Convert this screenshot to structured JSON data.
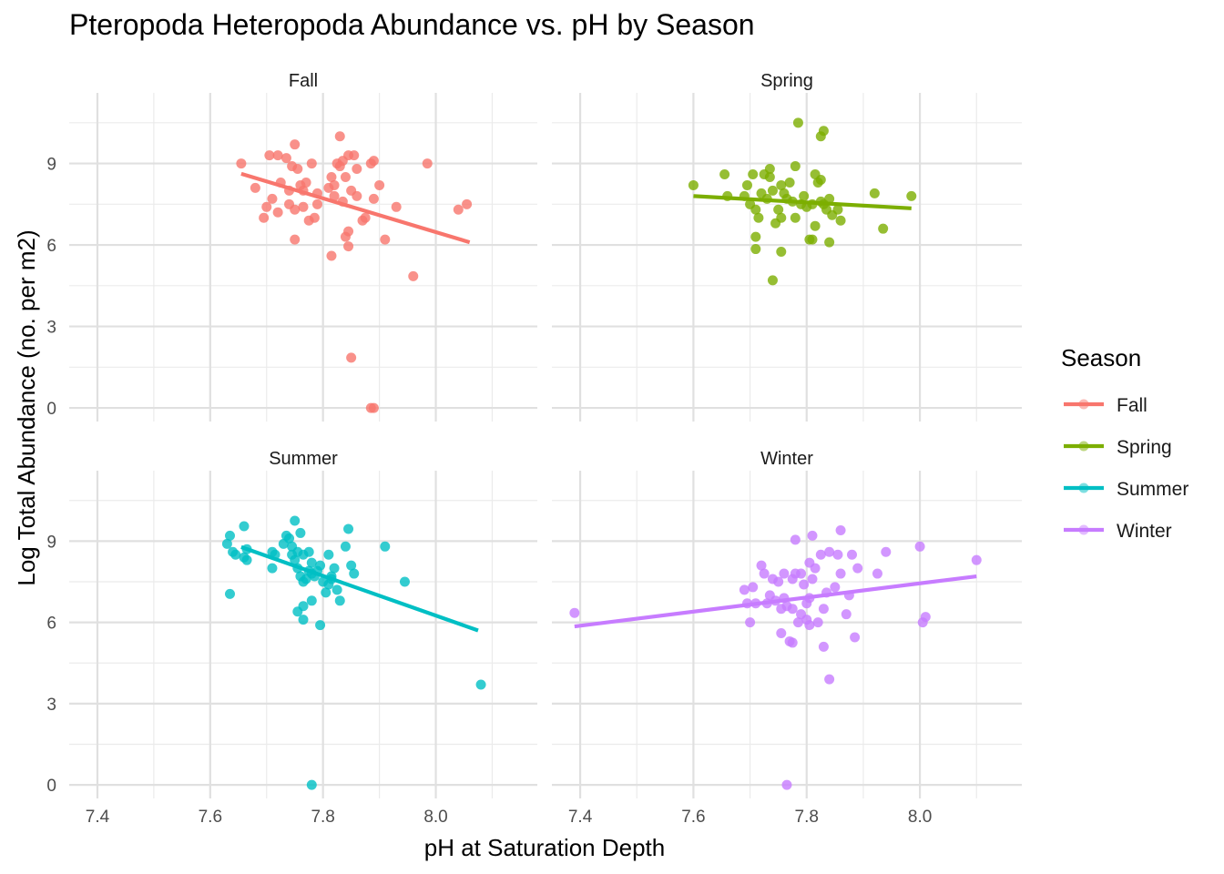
{
  "chart_data": {
    "type": "scatter",
    "title": "Pteropoda Heteropoda Abundance vs. pH by Season",
    "xlabel": "pH at Saturation Depth",
    "ylabel": "Log Total Abundance (no. per m2)",
    "xlim": [
      7.35,
      8.18
    ],
    "ylim": [
      -0.5,
      11.6
    ],
    "x_ticks": [
      7.4,
      7.6,
      7.8,
      8.0
    ],
    "y_ticks": [
      0,
      3,
      6,
      9
    ],
    "x_tick_labels": [
      "7.4",
      "7.6",
      "7.8",
      "8.0"
    ],
    "y_tick_labels": [
      "0",
      "3",
      "6",
      "9"
    ],
    "grid": true,
    "legend": {
      "title": "Season",
      "placement": "right",
      "entries": [
        "Fall",
        "Spring",
        "Summer",
        "Winter"
      ]
    },
    "series": [
      {
        "name": "Fall",
        "color": "#F8766D",
        "trend": [
          [
            7.655,
            8.62
          ],
          [
            8.06,
            6.1
          ]
        ],
        "points": [
          [
            7.655,
            9.0
          ],
          [
            7.68,
            8.1
          ],
          [
            7.7,
            7.4
          ],
          [
            7.705,
            9.3
          ],
          [
            7.71,
            7.7
          ],
          [
            7.72,
            9.3
          ],
          [
            7.72,
            7.2
          ],
          [
            7.725,
            8.3
          ],
          [
            7.735,
            9.2
          ],
          [
            7.74,
            7.5
          ],
          [
            7.745,
            8.9
          ],
          [
            7.75,
            9.7
          ],
          [
            7.75,
            7.3
          ],
          [
            7.755,
            8.8
          ],
          [
            7.76,
            8.2
          ],
          [
            7.765,
            7.4
          ],
          [
            7.765,
            8.0
          ],
          [
            7.77,
            8.3
          ],
          [
            7.775,
            6.9
          ],
          [
            7.78,
            9.0
          ],
          [
            7.785,
            7.0
          ],
          [
            7.79,
            7.5
          ],
          [
            7.79,
            7.9
          ],
          [
            7.81,
            8.1
          ],
          [
            7.815,
            8.5
          ],
          [
            7.82,
            7.8
          ],
          [
            7.82,
            8.2
          ],
          [
            7.825,
            9.0
          ],
          [
            7.83,
            8.9
          ],
          [
            7.83,
            10.0
          ],
          [
            7.835,
            9.1
          ],
          [
            7.835,
            7.6
          ],
          [
            7.84,
            8.5
          ],
          [
            7.84,
            6.3
          ],
          [
            7.845,
            9.3
          ],
          [
            7.845,
            6.5
          ],
          [
            7.85,
            8.0
          ],
          [
            7.855,
            9.3
          ],
          [
            7.86,
            8.8
          ],
          [
            7.86,
            7.8
          ],
          [
            7.87,
            6.9
          ],
          [
            7.875,
            7.0
          ],
          [
            7.885,
            9.0
          ],
          [
            7.89,
            9.1
          ],
          [
            7.89,
            7.7
          ],
          [
            7.9,
            8.2
          ],
          [
            7.91,
            6.2
          ],
          [
            7.93,
            7.4
          ],
          [
            7.96,
            4.85
          ],
          [
            7.985,
            9.0
          ],
          [
            8.04,
            7.3
          ],
          [
            8.055,
            7.5
          ],
          [
            7.845,
            5.95
          ],
          [
            7.75,
            6.2
          ],
          [
            7.815,
            5.6
          ],
          [
            7.85,
            1.85
          ],
          [
            7.885,
            0.0
          ],
          [
            7.89,
            0.0
          ],
          [
            7.695,
            7.0
          ],
          [
            7.74,
            8.0
          ]
        ]
      },
      {
        "name": "Spring",
        "color": "#7CAE00",
        "trend": [
          [
            7.6,
            7.8
          ],
          [
            7.985,
            7.35
          ]
        ],
        "points": [
          [
            7.6,
            8.2
          ],
          [
            7.655,
            8.6
          ],
          [
            7.66,
            7.8
          ],
          [
            7.69,
            7.8
          ],
          [
            7.695,
            8.2
          ],
          [
            7.7,
            7.5
          ],
          [
            7.705,
            8.6
          ],
          [
            7.71,
            7.3
          ],
          [
            7.71,
            6.3
          ],
          [
            7.715,
            7.0
          ],
          [
            7.72,
            7.9
          ],
          [
            7.725,
            8.6
          ],
          [
            7.73,
            7.7
          ],
          [
            7.735,
            8.8
          ],
          [
            7.735,
            8.5
          ],
          [
            7.74,
            8.0
          ],
          [
            7.745,
            6.8
          ],
          [
            7.75,
            7.3
          ],
          [
            7.755,
            8.2
          ],
          [
            7.755,
            7.0
          ],
          [
            7.76,
            7.9
          ],
          [
            7.765,
            7.7
          ],
          [
            7.77,
            8.3
          ],
          [
            7.775,
            7.6
          ],
          [
            7.78,
            8.9
          ],
          [
            7.78,
            7.0
          ],
          [
            7.785,
            10.5
          ],
          [
            7.79,
            7.5
          ],
          [
            7.795,
            7.8
          ],
          [
            7.8,
            7.4
          ],
          [
            7.805,
            6.2
          ],
          [
            7.81,
            7.5
          ],
          [
            7.815,
            6.7
          ],
          [
            7.815,
            8.6
          ],
          [
            7.82,
            8.3
          ],
          [
            7.825,
            7.6
          ],
          [
            7.825,
            10.0
          ],
          [
            7.83,
            10.2
          ],
          [
            7.83,
            7.5
          ],
          [
            7.835,
            7.3
          ],
          [
            7.84,
            7.7
          ],
          [
            7.84,
            6.1
          ],
          [
            7.845,
            7.1
          ],
          [
            7.855,
            7.3
          ],
          [
            7.86,
            6.9
          ],
          [
            7.935,
            6.6
          ],
          [
            7.985,
            7.8
          ],
          [
            7.92,
            7.9
          ],
          [
            7.825,
            8.4
          ],
          [
            7.71,
            5.85
          ],
          [
            7.755,
            5.75
          ],
          [
            7.74,
            4.7
          ],
          [
            7.81,
            6.2
          ]
        ]
      },
      {
        "name": "Summer",
        "color": "#00BFC4",
        "trend": [
          [
            7.655,
            8.78
          ],
          [
            8.075,
            5.7
          ]
        ],
        "points": [
          [
            7.63,
            8.9
          ],
          [
            7.635,
            9.2
          ],
          [
            7.635,
            7.05
          ],
          [
            7.64,
            8.6
          ],
          [
            7.645,
            8.5
          ],
          [
            7.66,
            9.55
          ],
          [
            7.66,
            8.4
          ],
          [
            7.665,
            8.3
          ],
          [
            7.665,
            8.7
          ],
          [
            7.71,
            8.6
          ],
          [
            7.71,
            8.0
          ],
          [
            7.715,
            8.5
          ],
          [
            7.73,
            8.9
          ],
          [
            7.735,
            9.2
          ],
          [
            7.74,
            9.1
          ],
          [
            7.745,
            8.5
          ],
          [
            7.745,
            8.8
          ],
          [
            7.75,
            9.75
          ],
          [
            7.75,
            8.3
          ],
          [
            7.755,
            8.0
          ],
          [
            7.755,
            8.6
          ],
          [
            7.76,
            7.7
          ],
          [
            7.76,
            9.3
          ],
          [
            7.765,
            7.5
          ],
          [
            7.765,
            8.5
          ],
          [
            7.77,
            7.6
          ],
          [
            7.775,
            7.9
          ],
          [
            7.775,
            8.6
          ],
          [
            7.78,
            8.2
          ],
          [
            7.78,
            7.8
          ],
          [
            7.785,
            7.7
          ],
          [
            7.79,
            7.9
          ],
          [
            7.795,
            8.1
          ],
          [
            7.8,
            7.5
          ],
          [
            7.805,
            7.1
          ],
          [
            7.81,
            8.5
          ],
          [
            7.81,
            7.4
          ],
          [
            7.815,
            7.7
          ],
          [
            7.82,
            8.0
          ],
          [
            7.825,
            7.2
          ],
          [
            7.83,
            6.8
          ],
          [
            7.84,
            8.8
          ],
          [
            7.845,
            9.45
          ],
          [
            7.85,
            8.1
          ],
          [
            7.855,
            7.8
          ],
          [
            7.91,
            8.8
          ],
          [
            7.945,
            7.5
          ],
          [
            7.78,
            6.8
          ],
          [
            7.755,
            6.4
          ],
          [
            7.765,
            6.6
          ],
          [
            7.765,
            6.1
          ],
          [
            7.795,
            5.9
          ],
          [
            8.08,
            3.7
          ],
          [
            7.78,
            0.0
          ],
          [
            7.815,
            7.6
          ]
        ]
      },
      {
        "name": "Winter",
        "color": "#C77CFF",
        "trend": [
          [
            7.39,
            5.85
          ],
          [
            8.1,
            7.7
          ]
        ],
        "points": [
          [
            7.39,
            6.35
          ],
          [
            7.69,
            7.2
          ],
          [
            7.695,
            6.7
          ],
          [
            7.7,
            6.0
          ],
          [
            7.705,
            7.3
          ],
          [
            7.71,
            6.7
          ],
          [
            7.72,
            8.1
          ],
          [
            7.725,
            7.8
          ],
          [
            7.73,
            6.7
          ],
          [
            7.735,
            7.0
          ],
          [
            7.74,
            7.6
          ],
          [
            7.745,
            6.8
          ],
          [
            7.75,
            7.5
          ],
          [
            7.755,
            5.6
          ],
          [
            7.755,
            6.5
          ],
          [
            7.76,
            7.8
          ],
          [
            7.76,
            6.9
          ],
          [
            7.765,
            6.6
          ],
          [
            7.77,
            5.3
          ],
          [
            7.775,
            5.25
          ],
          [
            7.775,
            6.5
          ],
          [
            7.78,
            9.05
          ],
          [
            7.78,
            7.8
          ],
          [
            7.785,
            6.0
          ],
          [
            7.79,
            6.3
          ],
          [
            7.79,
            7.8
          ],
          [
            7.795,
            7.4
          ],
          [
            7.8,
            6.1
          ],
          [
            7.8,
            6.7
          ],
          [
            7.805,
            5.9
          ],
          [
            7.805,
            8.2
          ],
          [
            7.81,
            7.6
          ],
          [
            7.81,
            9.2
          ],
          [
            7.815,
            8.0
          ],
          [
            7.82,
            6.0
          ],
          [
            7.825,
            8.5
          ],
          [
            7.83,
            6.5
          ],
          [
            7.83,
            5.1
          ],
          [
            7.835,
            7.1
          ],
          [
            7.84,
            3.9
          ],
          [
            7.84,
            8.6
          ],
          [
            7.85,
            7.3
          ],
          [
            7.855,
            8.5
          ],
          [
            7.86,
            9.4
          ],
          [
            7.86,
            7.8
          ],
          [
            7.87,
            6.3
          ],
          [
            7.875,
            7.0
          ],
          [
            7.88,
            8.5
          ],
          [
            7.885,
            5.45
          ],
          [
            7.89,
            8.0
          ],
          [
            7.925,
            7.8
          ],
          [
            7.94,
            8.6
          ],
          [
            8.0,
            8.8
          ],
          [
            8.005,
            6.0
          ],
          [
            8.01,
            6.2
          ],
          [
            8.1,
            8.3
          ],
          [
            7.765,
            0.0
          ],
          [
            7.805,
            6.9
          ],
          [
            7.775,
            7.6
          ]
        ]
      }
    ],
    "panels": [
      {
        "label": "Fall",
        "series": 0,
        "show_y_ticks": true,
        "show_x_ticks": false
      },
      {
        "label": "Spring",
        "series": 1,
        "show_y_ticks": false,
        "show_x_ticks": false
      },
      {
        "label": "Summer",
        "series": 2,
        "show_y_ticks": true,
        "show_x_ticks": true
      },
      {
        "label": "Winter",
        "series": 3,
        "show_y_ticks": false,
        "show_x_ticks": true
      }
    ]
  }
}
